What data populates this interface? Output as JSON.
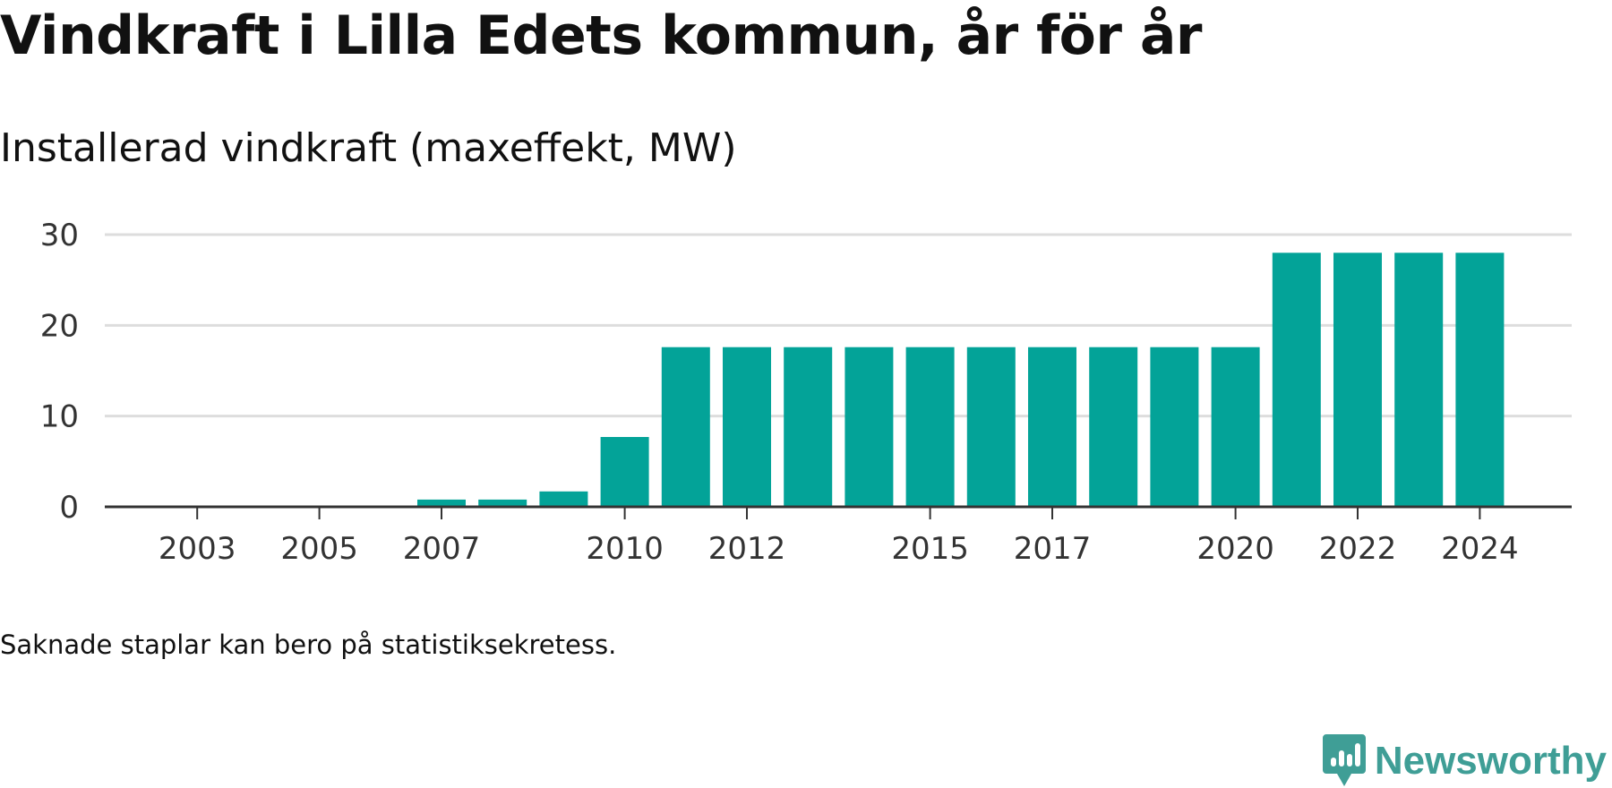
{
  "page": {
    "title": "Vindkraft i Lilla Edets kommun, år för år",
    "subtitle": "Installerad vindkraft (maxeffekt, MW)",
    "footnote": "Saknade staplar kan bero på statistiksekretess.",
    "brand": "Newsworthy",
    "brand_icon": "newsworthy-logo-icon"
  },
  "chart_data": {
    "type": "bar",
    "title": "Vindkraft i Lilla Edets kommun, år för år",
    "subtitle": "Installerad vindkraft (maxeffekt, MW)",
    "xlabel": "",
    "ylabel": "",
    "categories": [
      "2002",
      "2003",
      "2004",
      "2005",
      "2006",
      "2007",
      "2008",
      "2009",
      "2010",
      "2011",
      "2012",
      "2013",
      "2014",
      "2015",
      "2016",
      "2017",
      "2018",
      "2019",
      "2020",
      "2021",
      "2022",
      "2023",
      "2024"
    ],
    "values": [
      0,
      0,
      0,
      0,
      0,
      0.8,
      0.8,
      1.7,
      7.7,
      17.6,
      17.6,
      17.6,
      17.6,
      17.6,
      17.6,
      17.6,
      17.6,
      17.6,
      17.6,
      28,
      28,
      28,
      28
    ],
    "x_tick_labels": [
      "2003",
      "2005",
      "2007",
      "2010",
      "2012",
      "2015",
      "2017",
      "2020",
      "2022",
      "2024"
    ],
    "y_ticks": [
      0,
      10,
      20,
      30
    ],
    "ylim": [
      0,
      30
    ],
    "grid": true,
    "legend": "none",
    "colors": {
      "bar": "#03a398",
      "grid": "#dddddd",
      "axis": "#333333",
      "tick_text": "#333333",
      "brand": "#3f9e96"
    }
  }
}
